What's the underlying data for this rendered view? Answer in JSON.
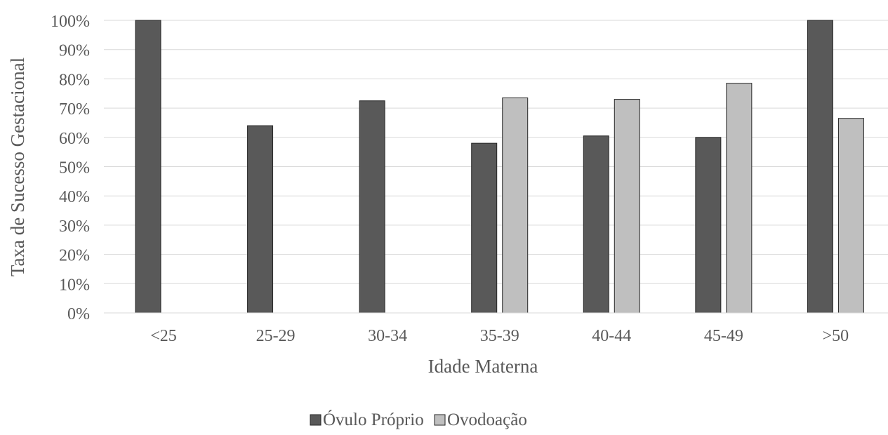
{
  "chart_data": {
    "type": "bar",
    "title": "",
    "xlabel": "Idade Materna",
    "ylabel": "Taxa de Sucesso Gestacional",
    "categories": [
      "<25",
      "25-29",
      "30-34",
      "35-39",
      "40-44",
      "45-49",
      ">50"
    ],
    "series": [
      {
        "name": "Óvulo Próprio",
        "color": "#595959",
        "values": [
          100,
          64,
          72.5,
          58,
          60.5,
          60,
          100
        ]
      },
      {
        "name": "Ovodoação",
        "color": "#bfbfbf",
        "values": [
          null,
          null,
          null,
          73.5,
          73,
          78.5,
          66.5
        ]
      }
    ],
    "ylim": [
      0,
      100
    ],
    "y_ticks": [
      "0%",
      "10%",
      "20%",
      "30%",
      "40%",
      "50%",
      "60%",
      "70%",
      "80%",
      "90%",
      "100%"
    ],
    "y_tick_values": [
      0,
      10,
      20,
      30,
      40,
      50,
      60,
      70,
      80,
      90,
      100
    ],
    "grid": true,
    "legend_position": "bottom"
  }
}
